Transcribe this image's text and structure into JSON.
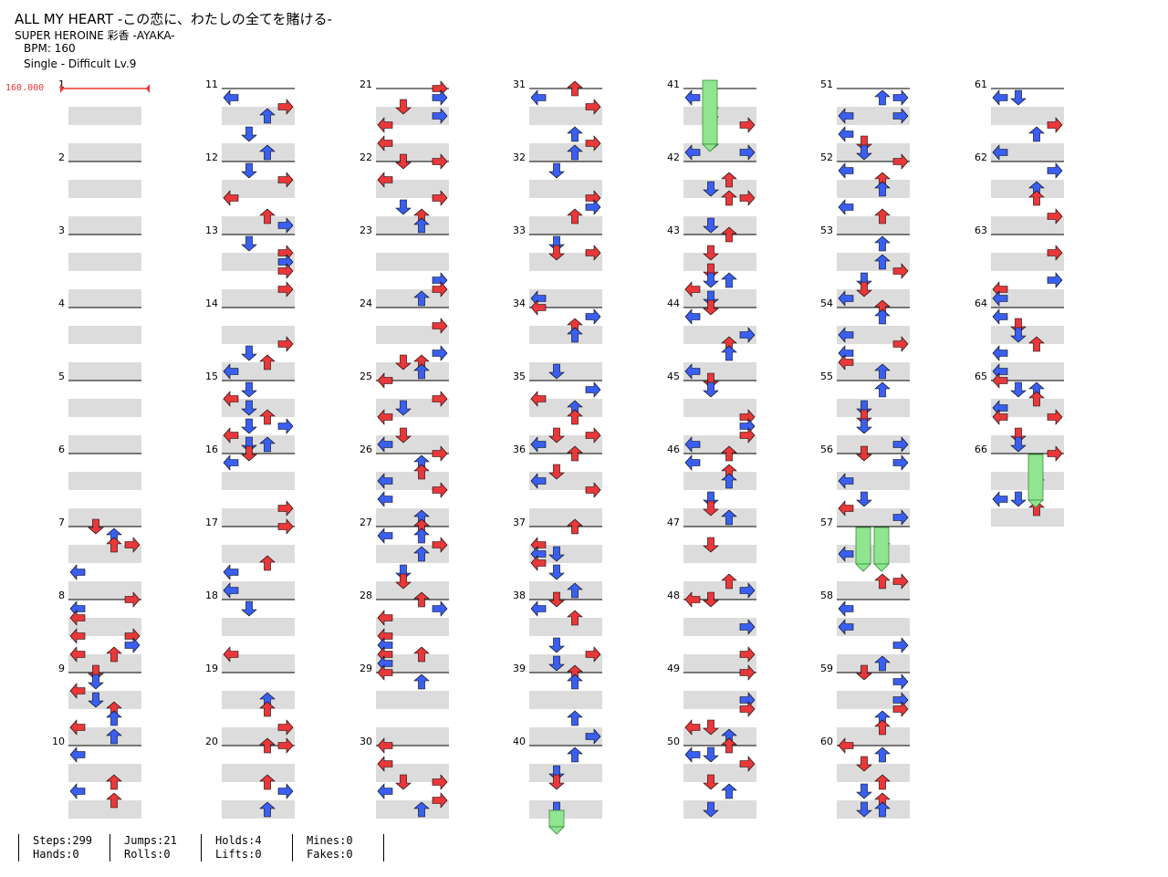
{
  "header": {
    "title": "ALL MY HEART -この恋に、わたしの全てを賭ける-",
    "artist": "SUPER HEROINE 彩香 -AYAKA-",
    "bpm": "BPM: 160",
    "difficulty": "Single - Difficult  Lv.9"
  },
  "bpm_marker": "160.000",
  "measures": {
    "count": 66,
    "columns": 7,
    "per_column": 10
  },
  "notes": {
    "arrow_left": "←",
    "arrow_down": "↓",
    "arrow_up": "↑",
    "arrow_right": "→",
    "colors": {
      "quarter": "#e8383a",
      "eighth": "#3a5ff0",
      "hold": "#90e690",
      "row": "#dcdcdc",
      "stem": "#e33"
    }
  },
  "stats": {
    "steps": "Steps:299",
    "hands": "Hands:0",
    "jumps": "Jumps:21",
    "rolls": "Rolls:0",
    "holds": "Holds:4",
    "lifts": "Lifts:0",
    "mines": "Mines:0",
    "fakes": "Fakes:0"
  }
}
